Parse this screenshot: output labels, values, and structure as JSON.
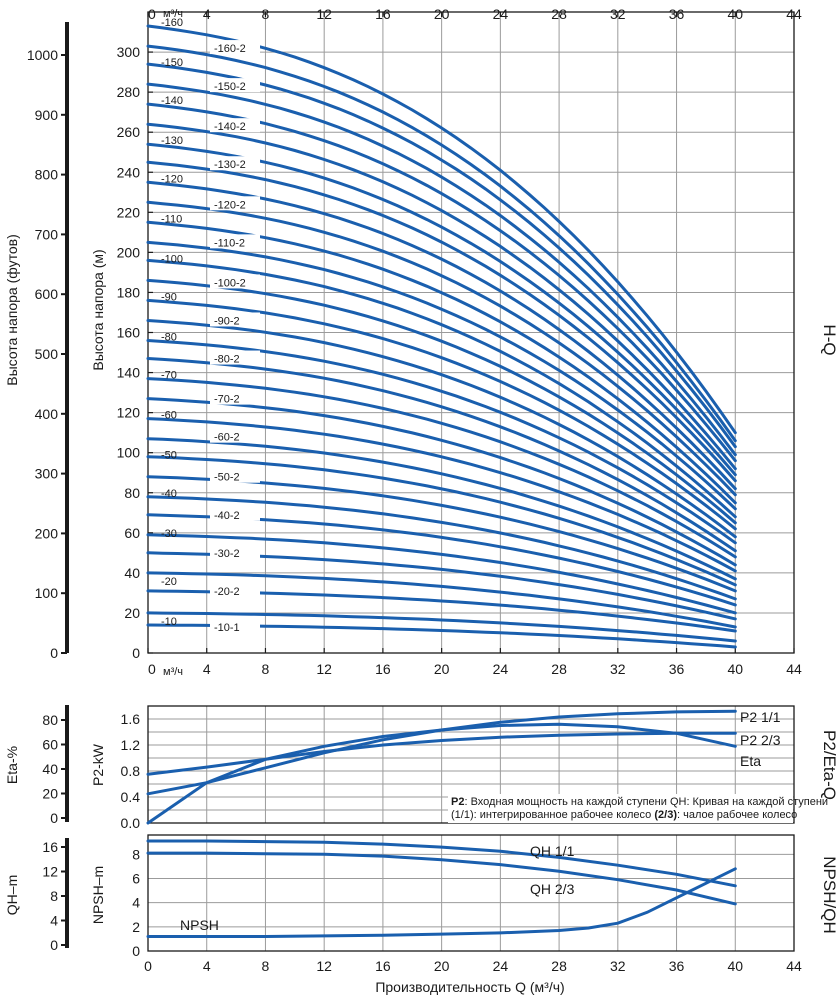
{
  "chart_data": [
    {
      "id": "hq",
      "type": "line",
      "xlabel": "",
      "ylabel": "Высота напора (м)",
      "ylabel_left": "Высота напора (футов)",
      "side_label": "H-Q",
      "top_unit_label": "м³/ч",
      "bottom_unit_label": "м³/ч",
      "xlim": [
        0,
        44
      ],
      "ylim": [
        0,
        320
      ],
      "xticks": [
        "0",
        "4",
        "8",
        "12",
        "16",
        "20",
        "24",
        "28",
        "32",
        "36",
        "40",
        "44"
      ],
      "yticks": [
        "0",
        "20",
        "40",
        "60",
        "80",
        "100",
        "120",
        "140",
        "160",
        "180",
        "200",
        "220",
        "240",
        "260",
        "280",
        "300"
      ],
      "feet_ticks": [
        "0",
        "100",
        "200",
        "300",
        "400",
        "500",
        "600",
        "700",
        "800",
        "900",
        "1000"
      ],
      "grid": true,
      "x": [
        0,
        4,
        8,
        12,
        16,
        20,
        24,
        28,
        32,
        36,
        40
      ],
      "series": [
        {
          "name": "-10-1",
          "y0": 14,
          "y40": 3,
          "label_full": "-10",
          "label_mid": "-10-1"
        },
        {
          "name": "-10",
          "y0": 20,
          "y40": 6
        },
        {
          "name": "-20-2",
          "y0": 31,
          "y40": 11,
          "label_full": "-20",
          "label_mid": "-20-2"
        },
        {
          "name": "-20",
          "y0": 40,
          "y40": 13
        },
        {
          "name": "-30-2",
          "y0": 50,
          "y40": 17
        },
        {
          "name": "-30",
          "y0": 59,
          "y40": 20,
          "label_full": "-30",
          "label_mid": "-30-2"
        },
        {
          "name": "-40-2",
          "y0": 69,
          "y40": 24,
          "label_full": "-40",
          "label_mid": "-40-2"
        },
        {
          "name": "-40",
          "y0": 78,
          "y40": 27
        },
        {
          "name": "-50-2",
          "y0": 88,
          "y40": 31,
          "label_full": "-50",
          "label_mid": "-50-2"
        },
        {
          "name": "-50",
          "y0": 98,
          "y40": 34
        },
        {
          "name": "-60-2",
          "y0": 107,
          "y40": 37,
          "label_full": "-60",
          "label_mid": "-60-2"
        },
        {
          "name": "-60",
          "y0": 117,
          "y40": 41
        },
        {
          "name": "-70-2",
          "y0": 127,
          "y40": 44,
          "label_full": "-70",
          "label_mid": "-70-2"
        },
        {
          "name": "-70",
          "y0": 137,
          "y40": 48
        },
        {
          "name": "-80-2",
          "y0": 147,
          "y40": 51,
          "label_full": "-80",
          "label_mid": "-80-2"
        },
        {
          "name": "-80",
          "y0": 156,
          "y40": 55
        },
        {
          "name": "-90-2",
          "y0": 166,
          "y40": 58,
          "label_full": "-90",
          "label_mid": "-90-2"
        },
        {
          "name": "-90",
          "y0": 176,
          "y40": 62
        },
        {
          "name": "-100-2",
          "y0": 186,
          "y40": 65,
          "label_full": "-100",
          "label_mid": "-100-2"
        },
        {
          "name": "-100",
          "y0": 196,
          "y40": 68
        },
        {
          "name": "-110-2",
          "y0": 205,
          "y40": 72,
          "label_full": "-110",
          "label_mid": "-110-2"
        },
        {
          "name": "-110",
          "y0": 215,
          "y40": 75
        },
        {
          "name": "-120-2",
          "y0": 225,
          "y40": 79,
          "label_full": "-120",
          "label_mid": "-120-2"
        },
        {
          "name": "-120",
          "y0": 235,
          "y40": 82
        },
        {
          "name": "-130-2",
          "y0": 245,
          "y40": 86,
          "label_full": "-130",
          "label_mid": "-130-2"
        },
        {
          "name": "-130",
          "y0": 254,
          "y40": 89
        },
        {
          "name": "-140-2",
          "y0": 264,
          "y40": 92,
          "label_full": "-140",
          "label_mid": "-140-2"
        },
        {
          "name": "-140",
          "y0": 274,
          "y40": 96
        },
        {
          "name": "-150-2",
          "y0": 284,
          "y40": 99,
          "label_full": "-150",
          "label_mid": "-150-2"
        },
        {
          "name": "-150",
          "y0": 294,
          "y40": 103
        },
        {
          "name": "-160-2",
          "y0": 303,
          "y40": 106,
          "label_full": "-160",
          "label_mid": "-160-2"
        },
        {
          "name": "-160",
          "y0": 313,
          "y40": 110
        }
      ],
      "left_labels": [
        "-10",
        "-20",
        "-30",
        "-40",
        "-50",
        "-60",
        "-70",
        "-80",
        "-90",
        "-100",
        "-110",
        "-120",
        "-130",
        "-140",
        "-150",
        "-160"
      ],
      "left_label_y": [
        16,
        36,
        60,
        80,
        99,
        119,
        139,
        158,
        178,
        197,
        217,
        237,
        256,
        276,
        295,
        315
      ],
      "mid_labels": [
        "-10-1",
        "-20-2",
        "-30-2",
        "-40-2",
        "-50-2",
        "-60-2",
        "-70-2",
        "-80-2",
        "-90-2",
        "-100-2",
        "-110-2",
        "-120-2",
        "-130-2",
        "-140-2",
        "-150-2",
        "-160-2"
      ],
      "mid_label_y": [
        13,
        31,
        50,
        69,
        88,
        108,
        127,
        147,
        166,
        185,
        205,
        224,
        244,
        263,
        283,
        302
      ]
    },
    {
      "id": "p2eta",
      "type": "line",
      "ylabel": "P2-kW",
      "ylabel_left": "Eta-%",
      "side_label": "P2/Eta-Q",
      "xlim": [
        0,
        44
      ],
      "ylim": [
        0,
        1.8
      ],
      "yticks": [
        "0.0",
        "0.4",
        "0.8",
        "1.2",
        "1.6"
      ],
      "eta_ticks": [
        "0",
        "20",
        "40",
        "60",
        "80"
      ],
      "grid": true,
      "series": [
        {
          "name": "P2 1/1",
          "x": [
            0,
            4,
            8,
            12,
            16,
            20,
            24,
            28,
            32,
            36,
            40
          ],
          "y": [
            0.45,
            0.62,
            0.85,
            1.08,
            1.28,
            1.43,
            1.55,
            1.63,
            1.68,
            1.71,
            1.72
          ]
        },
        {
          "name": "P2 2/3",
          "x": [
            0,
            4,
            8,
            12,
            16,
            20,
            24,
            28,
            32,
            36,
            40
          ],
          "y": [
            0.75,
            0.86,
            0.98,
            1.1,
            1.2,
            1.27,
            1.32,
            1.35,
            1.37,
            1.38,
            1.38
          ]
        },
        {
          "name": "Eta",
          "x": [
            0,
            4,
            8,
            12,
            16,
            20,
            24,
            28,
            32,
            36,
            40
          ],
          "y": [
            0.0,
            0.62,
            0.98,
            1.18,
            1.33,
            1.43,
            1.5,
            1.52,
            1.48,
            1.38,
            1.18
          ]
        }
      ],
      "legend_labels": [
        "P2 1/1",
        "P2 2/3",
        "Eta"
      ],
      "note_bold_1": "P2",
      "note_text_1": ": Входная мощность на каждой ступени QH: Кривая на каждой ступени",
      "note_text_2": "(1/1): интегрированное рабочее колесо ",
      "note_bold_2": "(2/3)",
      "note_text_3": ": чалое рабочее колесо"
    },
    {
      "id": "npshqh",
      "type": "line",
      "xlabel": "Производительность Q (м³/ч)",
      "ylabel": "NPSH–m",
      "ylabel_left": "QH–m",
      "side_label": "NPSH/QH",
      "xlim": [
        0,
        44
      ],
      "ylim": [
        0,
        9.6
      ],
      "xticks": [
        "0",
        "4",
        "8",
        "12",
        "16",
        "20",
        "24",
        "28",
        "32",
        "36",
        "40",
        "44"
      ],
      "yticks": [
        "0",
        "2",
        "4",
        "6",
        "8"
      ],
      "qh_ticks": [
        "0",
        "4",
        "8",
        "12",
        "16"
      ],
      "grid": true,
      "series": [
        {
          "name": "QH 1/1",
          "x": [
            0,
            4,
            8,
            12,
            16,
            20,
            24,
            28,
            32,
            36,
            40
          ],
          "y": [
            9.1,
            9.1,
            9.05,
            9.0,
            8.85,
            8.6,
            8.25,
            7.75,
            7.1,
            6.35,
            5.4
          ]
        },
        {
          "name": "QH 2/3",
          "x": [
            0,
            4,
            8,
            12,
            16,
            20,
            24,
            28,
            32,
            36,
            40
          ],
          "y": [
            8.1,
            8.1,
            8.05,
            8.0,
            7.85,
            7.55,
            7.15,
            6.6,
            5.9,
            5.05,
            3.9
          ]
        },
        {
          "name": "NPSH",
          "x": [
            0,
            4,
            8,
            12,
            16,
            20,
            24,
            28,
            30,
            32,
            34,
            36,
            38,
            40
          ],
          "y": [
            1.2,
            1.2,
            1.2,
            1.25,
            1.3,
            1.4,
            1.5,
            1.7,
            1.9,
            2.3,
            3.2,
            4.4,
            5.6,
            6.8
          ]
        }
      ],
      "legend_labels": [
        "QH 1/1",
        "QH 2/3",
        "NPSH"
      ]
    }
  ]
}
